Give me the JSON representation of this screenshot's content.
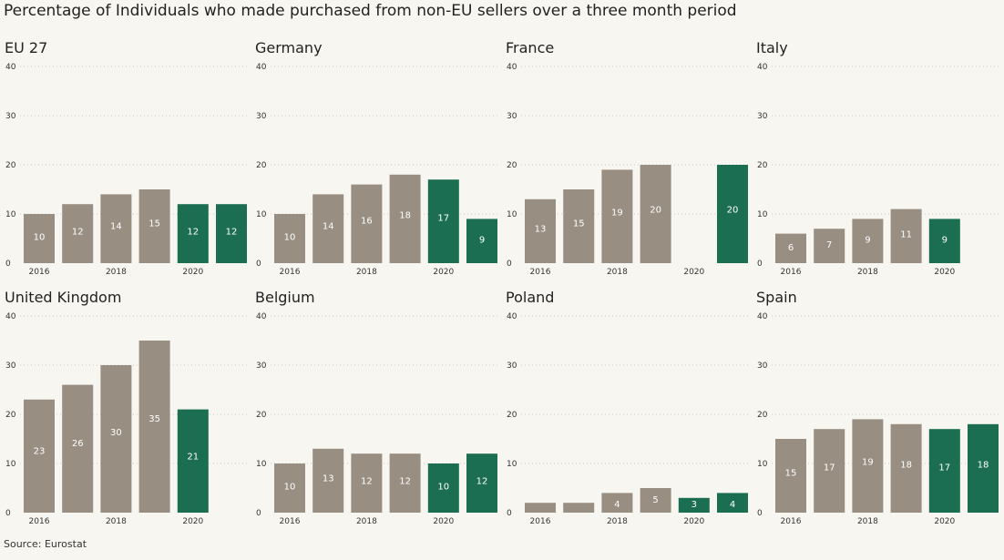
{
  "title": "Percentage of Individuals who made purchased from non-EU sellers over a three month period",
  "source": "Source: Eurostat",
  "colors": {
    "normal": "#988e82",
    "highlight": "#1b6e52"
  },
  "chart_data": [
    {
      "type": "bar",
      "title": "EU 27",
      "x": [
        2016,
        2017,
        2018,
        2019,
        2020,
        2021
      ],
      "values": [
        10,
        12,
        14,
        15,
        12,
        12
      ],
      "highlight_from": 2020,
      "ylim": [
        0,
        40
      ],
      "yticks": [
        0,
        10,
        20,
        30,
        40
      ],
      "xticks": [
        "2016",
        "2018",
        "2020"
      ]
    },
    {
      "type": "bar",
      "title": "Germany",
      "x": [
        2016,
        2017,
        2018,
        2019,
        2020,
        2021
      ],
      "values": [
        10,
        14,
        16,
        18,
        17,
        9
      ],
      "highlight_from": 2020,
      "ylim": [
        0,
        40
      ],
      "yticks": [
        0,
        10,
        20,
        30,
        40
      ],
      "xticks": [
        "2016",
        "2018",
        "2020"
      ]
    },
    {
      "type": "bar",
      "title": "France",
      "x": [
        2016,
        2017,
        2018,
        2019,
        2020,
        2021
      ],
      "values": [
        13,
        15,
        19,
        20,
        null,
        20
      ],
      "highlight_from": 2020,
      "ylim": [
        0,
        40
      ],
      "yticks": [
        0,
        10,
        20,
        30,
        40
      ],
      "xticks": [
        "2016",
        "2018",
        "2020"
      ]
    },
    {
      "type": "bar",
      "title": "Italy",
      "x": [
        2016,
        2017,
        2018,
        2019,
        2020,
        2021
      ],
      "values": [
        6,
        7,
        9,
        11,
        9,
        null
      ],
      "highlight_from": 2020,
      "ylim": [
        0,
        40
      ],
      "yticks": [
        0,
        10,
        20,
        30,
        40
      ],
      "xticks": [
        "2016",
        "2018",
        "2020"
      ]
    },
    {
      "type": "bar",
      "title": "United Kingdom",
      "x": [
        2016,
        2017,
        2018,
        2019,
        2020,
        2021
      ],
      "values": [
        23,
        26,
        30,
        35,
        21,
        null
      ],
      "highlight_from": 2020,
      "ylim": [
        0,
        40
      ],
      "yticks": [
        0,
        10,
        20,
        30,
        40
      ],
      "xticks": [
        "2016",
        "2018",
        "2020"
      ]
    },
    {
      "type": "bar",
      "title": "Belgium",
      "x": [
        2016,
        2017,
        2018,
        2019,
        2020,
        2021
      ],
      "values": [
        10,
        13,
        12,
        12,
        10,
        12
      ],
      "highlight_from": 2020,
      "ylim": [
        0,
        40
      ],
      "yticks": [
        0,
        10,
        20,
        30,
        40
      ],
      "xticks": [
        "2016",
        "2018",
        "2020"
      ]
    },
    {
      "type": "bar",
      "title": "Poland",
      "x": [
        2016,
        2017,
        2018,
        2019,
        2020,
        2021
      ],
      "values": [
        2,
        2,
        4,
        5,
        3,
        4
      ],
      "labelled_min": 3,
      "highlight_from": 2020,
      "ylim": [
        0,
        40
      ],
      "yticks": [
        0,
        10,
        20,
        30,
        40
      ],
      "xticks": [
        "2016",
        "2018",
        "2020"
      ]
    },
    {
      "type": "bar",
      "title": "Spain",
      "x": [
        2016,
        2017,
        2018,
        2019,
        2020,
        2021
      ],
      "values": [
        15,
        17,
        19,
        18,
        17,
        18
      ],
      "highlight_from": 2020,
      "ylim": [
        0,
        40
      ],
      "yticks": [
        0,
        10,
        20,
        30,
        40
      ],
      "xticks": [
        "2016",
        "2018",
        "2020"
      ]
    }
  ]
}
